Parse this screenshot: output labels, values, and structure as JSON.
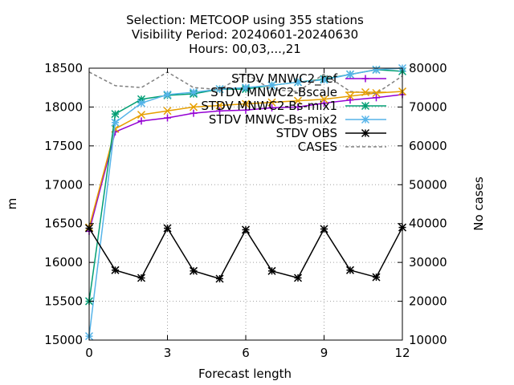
{
  "chart_data": {
    "type": "line",
    "title_lines": [
      "Selection: METCOOP using   355 stations",
      "Visibility   Period: 20240601-20240630",
      "Hours: 00,03,...,21"
    ],
    "xlabel": "Forecast length",
    "ylabel": "m",
    "y2label": "No cases",
    "xlim": [
      0,
      12
    ],
    "ylim": [
      15000,
      18500
    ],
    "y2lim": [
      10000,
      80000
    ],
    "xticks": [
      0,
      3,
      6,
      9,
      12
    ],
    "yticks": [
      15000,
      15500,
      16000,
      16500,
      17000,
      17500,
      18000,
      18500
    ],
    "y2ticks": [
      10000,
      20000,
      30000,
      40000,
      50000,
      60000,
      70000,
      80000
    ],
    "grid": true,
    "legend_position": "top-right",
    "x": [
      0,
      1,
      2,
      3,
      4,
      5,
      6,
      7,
      8,
      9,
      10,
      11,
      12
    ],
    "series": [
      {
        "name": "STDV MNWC2_ref",
        "color": "#9400d3",
        "marker": "plus",
        "axis": "y",
        "values": [
          16400,
          17680,
          17820,
          17860,
          17920,
          17950,
          17960,
          17990,
          18000,
          18050,
          18090,
          18120,
          18160
        ]
      },
      {
        "name": "STDV MNWC2-Bscale",
        "color": "#e69f00",
        "marker": "x",
        "axis": "y",
        "values": [
          16450,
          17720,
          17900,
          17950,
          18000,
          18020,
          18040,
          18060,
          18080,
          18100,
          18140,
          18180,
          18200
        ]
      },
      {
        "name": "STDV MNWC2-Bs-mix1",
        "color": "#009e73",
        "marker": "star",
        "axis": "y",
        "values": [
          15500,
          17910,
          18100,
          18150,
          18170,
          18230,
          18230,
          18280,
          18320,
          18360,
          18420,
          18480,
          18460
        ]
      },
      {
        "name": "STDV MNWC-Bs-mix2",
        "color": "#56b4e9",
        "marker": "star",
        "axis": "y",
        "values": [
          15050,
          17800,
          18050,
          18160,
          18190,
          18230,
          18250,
          18280,
          18320,
          18350,
          18420,
          18480,
          18500
        ]
      },
      {
        "name": "STDV OBS",
        "color": "#000000",
        "marker": "star",
        "axis": "y",
        "values": [
          16440,
          15900,
          15800,
          16440,
          15890,
          15790,
          16420,
          15890,
          15800,
          16430,
          15900,
          15810,
          16450
        ]
      },
      {
        "name": "CASES",
        "color": "#808080",
        "marker": "none",
        "dashed": true,
        "axis": "y2",
        "values": [
          79000,
          75500,
          75000,
          79000,
          75000,
          74500,
          78500,
          74500,
          74000,
          78500,
          74000,
          73500,
          78000
        ]
      }
    ]
  }
}
